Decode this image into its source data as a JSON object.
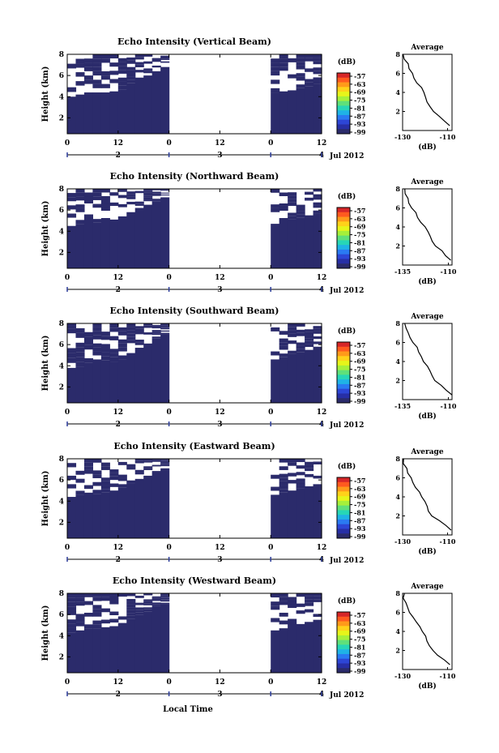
{
  "figure": {
    "xlabel": "Local Time",
    "colorbar_unit": "(dB)",
    "colorbar_ticks": [
      "-57",
      "-63",
      "-69",
      "-75",
      "-81",
      "-87",
      "-93",
      "-99"
    ],
    "colorbar_colors": [
      "#d62728",
      "#ff5a1f",
      "#ff9a1a",
      "#ffd21a",
      "#e7f51a",
      "#a6f03a",
      "#5fe07a",
      "#27d6b6",
      "#1fb3e6",
      "#2a7af2",
      "#2d46d6",
      "#272fa6",
      "#2b2b6b"
    ],
    "no_echo_color": "#ffffff",
    "echo_color": "#2b2b6b",
    "time_axis": {
      "hour_ticks": [
        "0",
        "12",
        "0",
        "12",
        "0",
        "12"
      ],
      "day_ticks": [
        "2",
        "3",
        "4"
      ],
      "month_label": "Jul 2012"
    },
    "height_ticks": [
      "2",
      "4",
      "6",
      "8"
    ],
    "average_title": "Average"
  },
  "chart_data": [
    {
      "type": "heatmap",
      "title": "Echo Intensity (Vertical Beam)",
      "ylabel": "Height (km)",
      "xlim_hours": [
        0,
        60
      ],
      "ylim_km": [
        0.5,
        8
      ],
      "data_gap_hours": [
        24,
        48
      ],
      "echo_top_km": [
        {
          "h": 0,
          "top": 4.0
        },
        {
          "h": 2,
          "top": 4.2
        },
        {
          "h": 4,
          "top": 4.4
        },
        {
          "h": 6,
          "top": 4.4
        },
        {
          "h": 8,
          "top": 4.4
        },
        {
          "h": 10,
          "top": 4.5
        },
        {
          "h": 12,
          "top": 4.7
        },
        {
          "h": 14,
          "top": 5.3
        },
        {
          "h": 16,
          "top": 5.8
        },
        {
          "h": 18,
          "top": 6.0
        },
        {
          "h": 20,
          "top": 6.4
        },
        {
          "h": 22,
          "top": 6.8
        },
        {
          "h": 48,
          "top": 4.4
        },
        {
          "h": 50,
          "top": 4.5
        },
        {
          "h": 52,
          "top": 4.6
        },
        {
          "h": 54,
          "top": 4.8
        },
        {
          "h": 56,
          "top": 5.0
        },
        {
          "h": 58,
          "top": 5.2
        }
      ],
      "average": {
        "xlabel": "(dB)",
        "xticks": [
          "-130",
          "-110"
        ],
        "xlim": [
          -130,
          -108
        ],
        "ylim": [
          0,
          8
        ],
        "yticks": [
          "2",
          "4",
          "6",
          "8"
        ],
        "profile": [
          [
            -108.6,
            0.5
          ],
          [
            -111,
            1.0
          ],
          [
            -114,
            1.5
          ],
          [
            -116.5,
            2.0
          ],
          [
            -118,
            2.5
          ],
          [
            -119,
            3.0
          ],
          [
            -119.5,
            3.5
          ],
          [
            -120.5,
            4.0
          ],
          [
            -122,
            4.5
          ],
          [
            -123.5,
            5.0
          ],
          [
            -124.5,
            5.5
          ],
          [
            -126,
            6.0
          ],
          [
            -127,
            6.5
          ],
          [
            -128,
            7.0
          ],
          [
            -129,
            7.5
          ],
          [
            -129.5,
            8.0
          ]
        ]
      }
    },
    {
      "type": "heatmap",
      "title": "Echo Intensity (Northward Beam)",
      "ylabel": "Height (km)",
      "xlim_hours": [
        0,
        60
      ],
      "ylim_km": [
        0.5,
        8
      ],
      "data_gap_hours": [
        24,
        48
      ],
      "echo_top_km": [
        {
          "h": 0,
          "top": 4.5
        },
        {
          "h": 2,
          "top": 4.7
        },
        {
          "h": 4,
          "top": 4.9
        },
        {
          "h": 6,
          "top": 4.8
        },
        {
          "h": 8,
          "top": 4.9
        },
        {
          "h": 10,
          "top": 5.1
        },
        {
          "h": 12,
          "top": 5.4
        },
        {
          "h": 14,
          "top": 5.8
        },
        {
          "h": 16,
          "top": 6.2
        },
        {
          "h": 18,
          "top": 6.5
        },
        {
          "h": 20,
          "top": 6.8
        },
        {
          "h": 22,
          "top": 7.2
        },
        {
          "h": 48,
          "top": 4.7
        },
        {
          "h": 50,
          "top": 4.9
        },
        {
          "h": 52,
          "top": 5.1
        },
        {
          "h": 54,
          "top": 5.3
        },
        {
          "h": 56,
          "top": 5.5
        },
        {
          "h": 58,
          "top": 5.7
        }
      ],
      "average": {
        "xlabel": "(dB)",
        "xticks": [
          "-135",
          "-110"
        ],
        "xlim": [
          -135,
          -108
        ],
        "ylim": [
          0,
          8
        ],
        "yticks": [
          "2",
          "4",
          "6",
          "8"
        ],
        "profile": [
          [
            -108.6,
            0.5
          ],
          [
            -111,
            1.0
          ],
          [
            -114,
            1.5
          ],
          [
            -117,
            2.0
          ],
          [
            -119,
            2.5
          ],
          [
            -120.5,
            3.0
          ],
          [
            -121.5,
            3.5
          ],
          [
            -123,
            4.0
          ],
          [
            -125,
            4.5
          ],
          [
            -126.5,
            5.0
          ],
          [
            -128,
            5.5
          ],
          [
            -129.5,
            6.0
          ],
          [
            -131,
            6.5
          ],
          [
            -132.5,
            7.0
          ],
          [
            -133.5,
            7.5
          ],
          [
            -134.3,
            8.0
          ]
        ]
      }
    },
    {
      "type": "heatmap",
      "title": "Echo Intensity (Southward Beam)",
      "ylabel": "Height (km)",
      "xlim_hours": [
        0,
        60
      ],
      "ylim_km": [
        0.5,
        8
      ],
      "data_gap_hours": [
        24,
        48
      ],
      "echo_top_km": [
        {
          "h": 0,
          "top": 3.8
        },
        {
          "h": 2,
          "top": 3.9
        },
        {
          "h": 4,
          "top": 4.3
        },
        {
          "h": 6,
          "top": 4.6
        },
        {
          "h": 8,
          "top": 4.5
        },
        {
          "h": 10,
          "top": 4.4
        },
        {
          "h": 12,
          "top": 4.6
        },
        {
          "h": 14,
          "top": 5.2
        },
        {
          "h": 16,
          "top": 5.7
        },
        {
          "h": 18,
          "top": 6.1
        },
        {
          "h": 20,
          "top": 6.6
        },
        {
          "h": 22,
          "top": 7.0
        },
        {
          "h": 48,
          "top": 4.6
        },
        {
          "h": 50,
          "top": 4.8
        },
        {
          "h": 52,
          "top": 5.1
        },
        {
          "h": 54,
          "top": 5.3
        },
        {
          "h": 56,
          "top": 5.5
        },
        {
          "h": 58,
          "top": 5.8
        }
      ],
      "average": {
        "xlabel": "(dB)",
        "xticks": [
          "-135",
          "-110"
        ],
        "xlim": [
          -135,
          -108
        ],
        "ylim": [
          0,
          8
        ],
        "yticks": [
          "2",
          "4",
          "6",
          "8"
        ],
        "profile": [
          [
            -108.6,
            0.5
          ],
          [
            -111,
            1.0
          ],
          [
            -114,
            1.5
          ],
          [
            -117,
            2.0
          ],
          [
            -119,
            2.5
          ],
          [
            -120,
            3.0
          ],
          [
            -121.5,
            3.5
          ],
          [
            -123,
            4.0
          ],
          [
            -124.5,
            4.5
          ],
          [
            -126,
            5.0
          ],
          [
            -127.5,
            5.5
          ],
          [
            -129,
            6.0
          ],
          [
            -130.5,
            6.5
          ],
          [
            -132,
            7.0
          ],
          [
            -133.5,
            7.5
          ],
          [
            -134.3,
            8.0
          ]
        ]
      }
    },
    {
      "type": "heatmap",
      "title": "Echo Intensity (Eastward Beam)",
      "ylabel": "Height (km)",
      "xlim_hours": [
        0,
        60
      ],
      "ylim_km": [
        0.5,
        8
      ],
      "data_gap_hours": [
        24,
        48
      ],
      "echo_top_km": [
        {
          "h": 0,
          "top": 4.4
        },
        {
          "h": 2,
          "top": 4.6
        },
        {
          "h": 4,
          "top": 4.8
        },
        {
          "h": 6,
          "top": 4.7
        },
        {
          "h": 8,
          "top": 4.8
        },
        {
          "h": 10,
          "top": 5.0
        },
        {
          "h": 12,
          "top": 5.3
        },
        {
          "h": 14,
          "top": 5.7
        },
        {
          "h": 16,
          "top": 6.1
        },
        {
          "h": 18,
          "top": 6.4
        },
        {
          "h": 20,
          "top": 6.7
        },
        {
          "h": 22,
          "top": 7.1
        },
        {
          "h": 48,
          "top": 4.6
        },
        {
          "h": 50,
          "top": 4.8
        },
        {
          "h": 52,
          "top": 5.0
        },
        {
          "h": 54,
          "top": 5.2
        },
        {
          "h": 56,
          "top": 5.4
        },
        {
          "h": 58,
          "top": 5.6
        }
      ],
      "average": {
        "xlabel": "(dB)",
        "xticks": [
          "-130",
          "-110"
        ],
        "xlim": [
          -130,
          -108
        ],
        "ylim": [
          0,
          8
        ],
        "yticks": [
          "2",
          "4",
          "6",
          "8"
        ],
        "profile": [
          [
            -108.6,
            0.5
          ],
          [
            -111,
            1.0
          ],
          [
            -114,
            1.5
          ],
          [
            -116.5,
            2.0
          ],
          [
            -118,
            2.5
          ],
          [
            -119,
            3.0
          ],
          [
            -120,
            3.5
          ],
          [
            -121,
            4.0
          ],
          [
            -122.5,
            4.5
          ],
          [
            -124,
            5.0
          ],
          [
            -125,
            5.5
          ],
          [
            -126.5,
            6.0
          ],
          [
            -127.5,
            6.5
          ],
          [
            -128.5,
            7.0
          ],
          [
            -129.3,
            7.5
          ],
          [
            -129.6,
            8.0
          ]
        ]
      }
    },
    {
      "type": "heatmap",
      "title": "Echo Intensity (Westward Beam)",
      "ylabel": "Height (km)",
      "xlim_hours": [
        0,
        60
      ],
      "ylim_km": [
        0.5,
        8
      ],
      "data_gap_hours": [
        24,
        48
      ],
      "echo_top_km": [
        {
          "h": 0,
          "top": 4.3
        },
        {
          "h": 2,
          "top": 4.5
        },
        {
          "h": 4,
          "top": 4.7
        },
        {
          "h": 6,
          "top": 4.7
        },
        {
          "h": 8,
          "top": 4.8
        },
        {
          "h": 10,
          "top": 4.9
        },
        {
          "h": 12,
          "top": 5.2
        },
        {
          "h": 14,
          "top": 5.6
        },
        {
          "h": 16,
          "top": 6.0
        },
        {
          "h": 18,
          "top": 6.3
        },
        {
          "h": 20,
          "top": 6.7
        },
        {
          "h": 22,
          "top": 7.0
        },
        {
          "h": 48,
          "top": 4.5
        },
        {
          "h": 50,
          "top": 4.7
        },
        {
          "h": 52,
          "top": 4.9
        },
        {
          "h": 54,
          "top": 5.1
        },
        {
          "h": 56,
          "top": 5.3
        },
        {
          "h": 58,
          "top": 5.5
        }
      ],
      "average": {
        "xlabel": "(dB)",
        "xticks": [
          "-130",
          "-110"
        ],
        "xlim": [
          -130,
          -108
        ],
        "ylim": [
          0,
          8
        ],
        "yticks": [
          "2",
          "4",
          "6",
          "8"
        ],
        "profile": [
          [
            -108.6,
            0.5
          ],
          [
            -111,
            1.0
          ],
          [
            -114,
            1.5
          ],
          [
            -116.5,
            2.0
          ],
          [
            -118,
            2.5
          ],
          [
            -119,
            3.0
          ],
          [
            -120,
            3.5
          ],
          [
            -121,
            4.0
          ],
          [
            -122.5,
            4.5
          ],
          [
            -124,
            5.0
          ],
          [
            -125,
            5.5
          ],
          [
            -126.5,
            6.0
          ],
          [
            -127.5,
            6.5
          ],
          [
            -128.5,
            7.0
          ],
          [
            -129.3,
            7.5
          ],
          [
            -129.6,
            8.0
          ]
        ]
      }
    }
  ]
}
